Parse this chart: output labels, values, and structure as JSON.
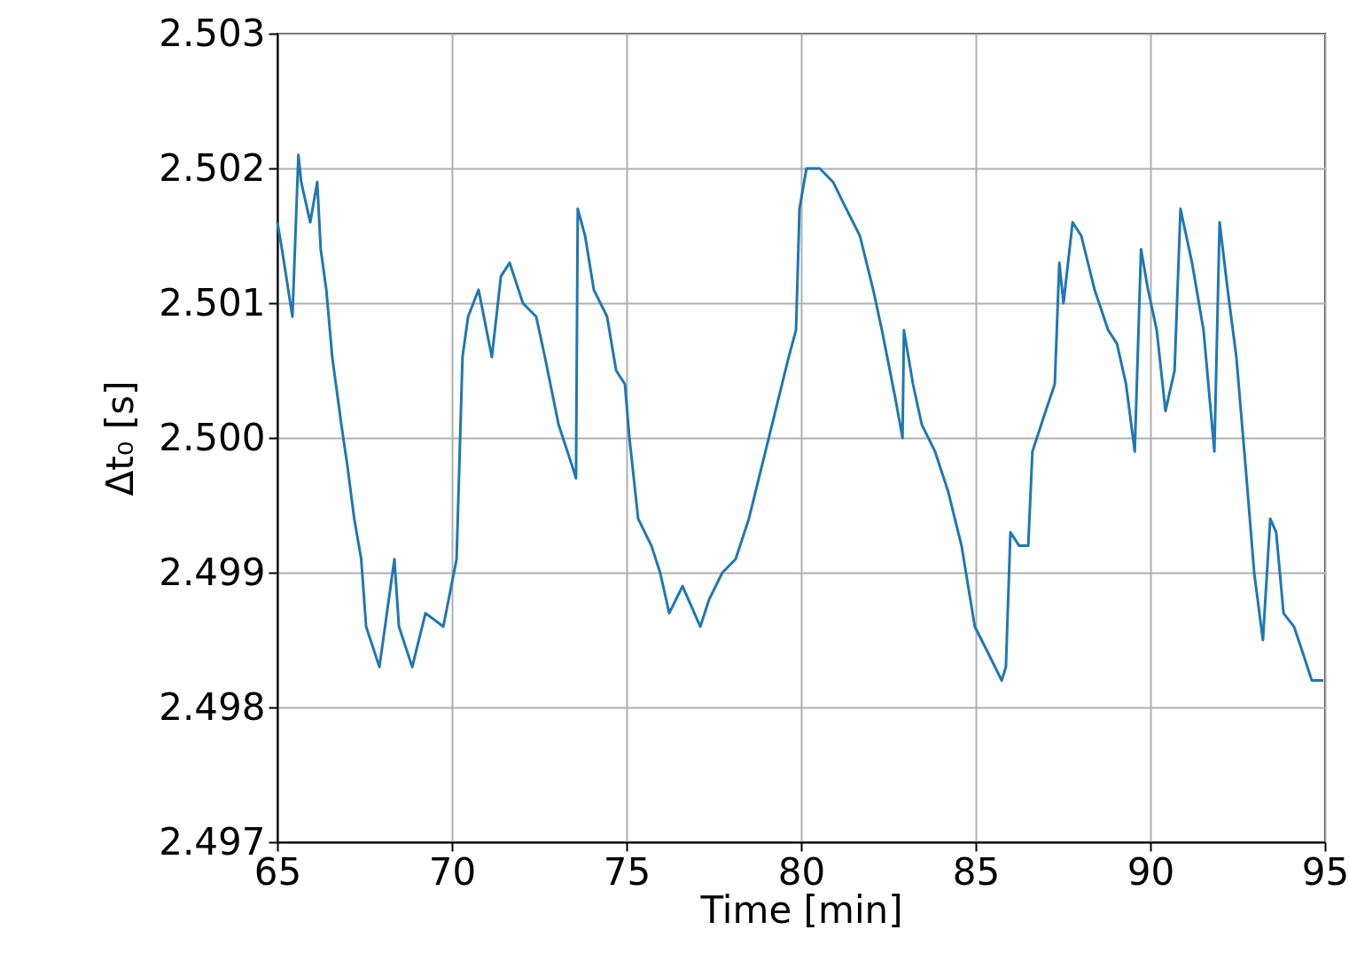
{
  "chart_data": {
    "type": "line",
    "xlabel": "Time [min]",
    "ylabel": "Δt₀ [s]",
    "xlim": [
      65,
      95
    ],
    "xticks": [
      65,
      70,
      75,
      80,
      85,
      90,
      95
    ],
    "ylim": [
      2.497,
      2.503
    ],
    "yticks": [
      {
        "value": 2.497,
        "label": "2.497"
      },
      {
        "value": 2.498,
        "label": "2.498"
      },
      {
        "value": 2.499,
        "label": "2.499"
      },
      {
        "value": 2.5,
        "label": "2.500"
      },
      {
        "value": 2.501,
        "label": "2.501"
      },
      {
        "value": 2.502,
        "label": "2.502"
      },
      {
        "value": 2.503,
        "label": "2.503"
      }
    ],
    "grid": true,
    "line_style": "solid",
    "marker": "none",
    "x": [
      65.0,
      65.13,
      65.25,
      65.43,
      65.6,
      65.68,
      65.94,
      66.14,
      66.24,
      66.4,
      66.57,
      66.83,
      67.0,
      67.2,
      67.4,
      67.54,
      67.92,
      68.35,
      68.48,
      68.86,
      69.24,
      69.75,
      70.13,
      70.3,
      70.46,
      70.76,
      71.14,
      71.4,
      71.65,
      72.03,
      72.41,
      72.66,
      73.05,
      73.43,
      73.55,
      73.6,
      73.81,
      74.06,
      74.44,
      74.7,
      74.95,
      75.08,
      75.33,
      75.71,
      75.96,
      76.22,
      76.6,
      77.11,
      77.36,
      77.74,
      78.12,
      78.5,
      78.88,
      79.26,
      79.64,
      79.85,
      79.95,
      80.15,
      80.53,
      80.91,
      81.29,
      81.68,
      82.06,
      82.31,
      82.69,
      82.9,
      82.94,
      83.2,
      83.45,
      83.83,
      84.21,
      84.59,
      84.97,
      85.36,
      85.74,
      85.86,
      85.99,
      86.24,
      86.5,
      86.62,
      87.0,
      87.26,
      87.39,
      87.51,
      87.77,
      88.02,
      88.4,
      88.79,
      89.04,
      89.3,
      89.55,
      89.73,
      89.93,
      90.18,
      90.43,
      90.69,
      90.86,
      91.19,
      91.52,
      91.83,
      91.98,
      92.21,
      92.46,
      92.72,
      92.97,
      93.22,
      93.43,
      93.6,
      93.81,
      94.11,
      94.37,
      94.62,
      94.95
    ],
    "series": [
      {
        "color": "#1f77b4",
        "values": [
          2.5016,
          2.5014,
          2.5012,
          2.5009,
          2.5021,
          2.5019,
          2.5016,
          2.5019,
          2.5014,
          2.5011,
          2.5006,
          2.5001,
          2.4998,
          2.4994,
          2.4991,
          2.4986,
          2.4983,
          2.4991,
          2.4986,
          2.4983,
          2.4987,
          2.4986,
          2.4991,
          2.5006,
          2.5009,
          2.5011,
          2.5006,
          2.5012,
          2.5013,
          2.501,
          2.5009,
          2.5006,
          2.5001,
          2.4998,
          2.4997,
          2.5017,
          2.5015,
          2.5011,
          2.5009,
          2.5005,
          2.5004,
          2.5,
          2.4994,
          2.4992,
          2.499,
          2.4987,
          2.4989,
          2.4986,
          2.4988,
          2.499,
          2.4991,
          2.4994,
          2.4998,
          2.5002,
          2.5006,
          2.5008,
          2.5017,
          2.502,
          2.502,
          2.5019,
          2.5017,
          2.5015,
          2.5011,
          2.5008,
          2.5003,
          2.5,
          2.5008,
          2.5004,
          2.5001,
          2.4999,
          2.4996,
          2.4992,
          2.4986,
          2.4984,
          2.4982,
          2.4983,
          2.4993,
          2.4992,
          2.4992,
          2.4999,
          2.5002,
          2.5004,
          2.5013,
          2.501,
          2.5016,
          2.5015,
          2.5011,
          2.5008,
          2.5007,
          2.5004,
          2.4999,
          2.5014,
          2.5011,
          2.5008,
          2.5002,
          2.5005,
          2.5017,
          2.5013,
          2.5008,
          2.4999,
          2.5016,
          2.5011,
          2.5006,
          2.4998,
          2.499,
          2.4985,
          2.4994,
          2.4993,
          2.4987,
          2.4986,
          2.4984,
          2.4982,
          2.4982
        ]
      }
    ]
  }
}
